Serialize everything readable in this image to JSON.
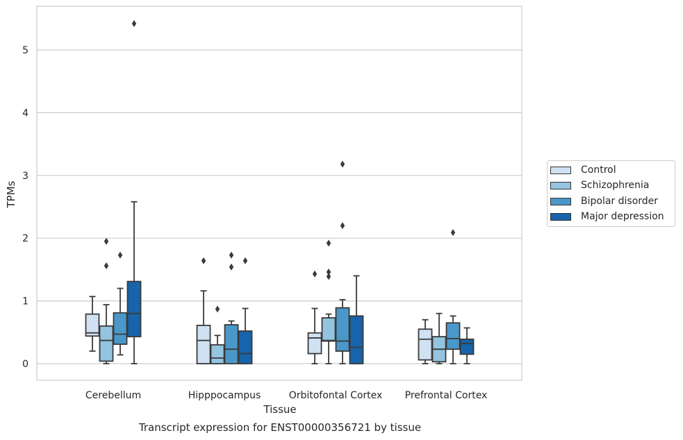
{
  "chart_data": {
    "type": "box",
    "title": "",
    "xlabel": "Tissue",
    "ylabel": "TPMs",
    "caption": "Transcript expression for ENST00000356721 by tissue",
    "ylim": [
      -0.27,
      5.7
    ],
    "yticks": [
      0,
      1,
      2,
      3,
      4,
      5
    ],
    "grid": true,
    "legend_position": "right",
    "categories": [
      "Cerebellum",
      "Hipppocampus",
      "Orbitofontal Cortex",
      "Prefrontal Cortex"
    ],
    "series": [
      {
        "name": "Control",
        "color": "#d0e1f2",
        "boxes": [
          {
            "whislo": 0.2,
            "q1": 0.44,
            "med": 0.49,
            "q3": 0.79,
            "whishi": 1.07,
            "fliers": []
          },
          {
            "whislo": 0.0,
            "q1": 0.0,
            "med": 0.37,
            "q3": 0.61,
            "whishi": 1.16,
            "fliers": [
              1.64
            ]
          },
          {
            "whislo": 0.0,
            "q1": 0.16,
            "med": 0.41,
            "q3": 0.49,
            "whishi": 0.88,
            "fliers": [
              1.43
            ]
          },
          {
            "whislo": 0.0,
            "q1": 0.06,
            "med": 0.39,
            "q3": 0.55,
            "whishi": 0.7,
            "fliers": []
          }
        ]
      },
      {
        "name": "Schizophrenia",
        "color": "#94c4df",
        "boxes": [
          {
            "whislo": 0.0,
            "q1": 0.04,
            "med": 0.37,
            "q3": 0.6,
            "whishi": 0.94,
            "fliers": [
              1.56,
              1.95
            ]
          },
          {
            "whislo": 0.0,
            "q1": 0.0,
            "med": 0.09,
            "q3": 0.3,
            "whishi": 0.45,
            "fliers": [
              0.87
            ]
          },
          {
            "whislo": 0.0,
            "q1": 0.36,
            "med": 0.37,
            "q3": 0.73,
            "whishi": 0.79,
            "fliers": [
              1.39,
              1.46,
              1.92
            ]
          },
          {
            "whislo": 0.0,
            "q1": 0.03,
            "med": 0.23,
            "q3": 0.43,
            "whishi": 0.8,
            "fliers": []
          }
        ]
      },
      {
        "name": "Bipolar disorder",
        "color": "#4a98c9",
        "boxes": [
          {
            "whislo": 0.14,
            "q1": 0.31,
            "med": 0.47,
            "q3": 0.81,
            "whishi": 1.2,
            "fliers": [
              1.73
            ]
          },
          {
            "whislo": 0.0,
            "q1": 0.0,
            "med": 0.23,
            "q3": 0.62,
            "whishi": 0.68,
            "fliers": [
              1.54,
              1.73
            ]
          },
          {
            "whislo": 0.0,
            "q1": 0.2,
            "med": 0.36,
            "q3": 0.89,
            "whishi": 1.02,
            "fliers": [
              2.2,
              3.18
            ]
          },
          {
            "whislo": 0.0,
            "q1": 0.23,
            "med": 0.4,
            "q3": 0.65,
            "whishi": 0.76,
            "fliers": [
              2.09
            ]
          }
        ]
      },
      {
        "name": "Major depression",
        "color": "#1764ab",
        "boxes": [
          {
            "whislo": 0.0,
            "q1": 0.43,
            "med": 0.8,
            "q3": 1.31,
            "whishi": 2.58,
            "fliers": [
              5.42
            ]
          },
          {
            "whislo": 0.0,
            "q1": 0.0,
            "med": 0.16,
            "q3": 0.52,
            "whishi": 0.88,
            "fliers": [
              1.64
            ]
          },
          {
            "whislo": 0.0,
            "q1": 0.0,
            "med": 0.26,
            "q3": 0.76,
            "whishi": 1.4,
            "fliers": []
          },
          {
            "whislo": 0.0,
            "q1": 0.15,
            "med": 0.32,
            "q3": 0.39,
            "whishi": 0.57,
            "fliers": []
          }
        ]
      }
    ]
  }
}
